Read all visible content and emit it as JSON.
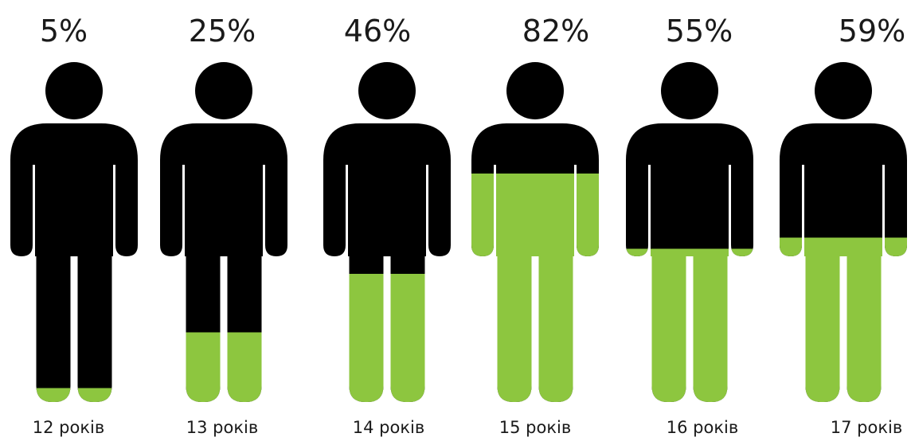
{
  "chart_data": {
    "type": "bar",
    "title": "",
    "xlabel": "",
    "ylabel": "",
    "ylim": [
      0,
      100
    ],
    "grid": false,
    "legend": "none",
    "categories": [
      "12 років",
      "13 років",
      "14 років",
      "15 років",
      "16 років",
      "17 років"
    ],
    "values": [
      5,
      25,
      46,
      82,
      55,
      59
    ],
    "value_labels": [
      "5%",
      "25%",
      "46%",
      "82%",
      "55%",
      "59%"
    ],
    "colors": {
      "fill": "#8dc63f",
      "empty": "#000000"
    }
  }
}
